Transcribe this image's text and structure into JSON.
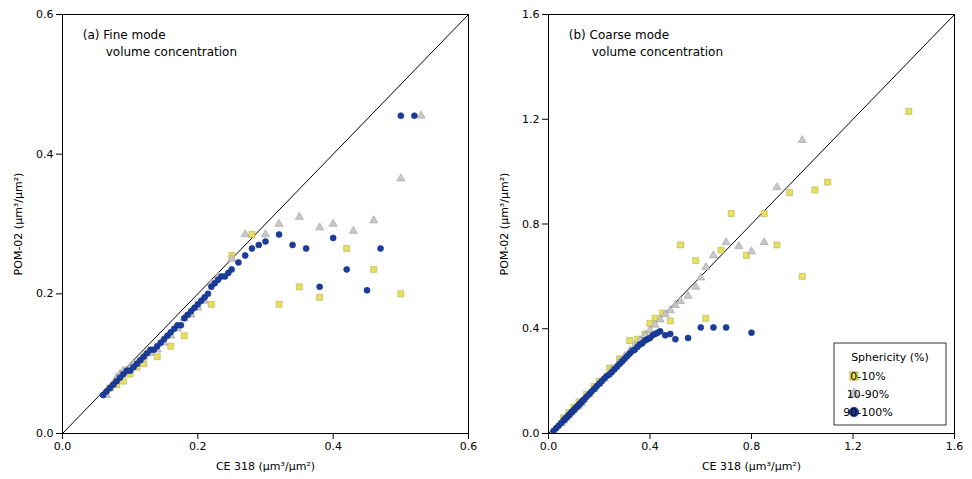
{
  "chart_data": [
    {
      "type": "scatter",
      "annotations": [
        "(a) Fine mode\n      volume concentration"
      ],
      "xlabel": "CE 318 (μm³/μm²)",
      "ylabel": "POM-02 (μm³/μm²)",
      "xlim": [
        0,
        0.6
      ],
      "ylim": [
        0,
        0.6
      ],
      "xticks": [
        {
          "value": 0,
          "label": "0.0"
        },
        0.2,
        0.4,
        0.6
      ],
      "yticks": [
        {
          "value": 0,
          "label": "0.0"
        },
        0.2,
        0.4,
        0.6
      ],
      "grid": false,
      "series": [
        {
          "marker": "square",
          "color": "#e8e060",
          "x": [
            0.07,
            0.08,
            0.09,
            0.1,
            0.11,
            0.12,
            0.14,
            0.16,
            0.18,
            0.22,
            0.25,
            0.28,
            0.32,
            0.35,
            0.38,
            0.42,
            0.46,
            0.5
          ],
          "y": [
            0.065,
            0.07,
            0.075,
            0.085,
            0.095,
            0.1,
            0.11,
            0.125,
            0.14,
            0.185,
            0.255,
            0.285,
            0.185,
            0.21,
            0.195,
            0.265,
            0.235,
            0.2
          ]
        },
        {
          "marker": "triangle",
          "color": "#c8c8c8",
          "x": [
            0.065,
            0.07,
            0.075,
            0.08,
            0.085,
            0.09,
            0.095,
            0.1,
            0.105,
            0.11,
            0.115,
            0.12,
            0.13,
            0.14,
            0.15,
            0.16,
            0.17,
            0.18,
            0.19,
            0.2,
            0.21,
            0.22,
            0.23,
            0.25,
            0.27,
            0.3,
            0.32,
            0.35,
            0.38,
            0.4,
            0.43,
            0.46,
            0.5,
            0.53
          ],
          "y": [
            0.055,
            0.065,
            0.07,
            0.08,
            0.085,
            0.09,
            0.09,
            0.095,
            0.1,
            0.1,
            0.105,
            0.11,
            0.115,
            0.12,
            0.13,
            0.14,
            0.15,
            0.165,
            0.17,
            0.18,
            0.19,
            0.215,
            0.225,
            0.25,
            0.285,
            0.285,
            0.3,
            0.31,
            0.295,
            0.3,
            0.29,
            0.305,
            0.365,
            0.455
          ]
        },
        {
          "marker": "circle",
          "color": "#1a3d9e",
          "x": [
            0.06,
            0.065,
            0.07,
            0.075,
            0.08,
            0.085,
            0.09,
            0.095,
            0.1,
            0.105,
            0.11,
            0.115,
            0.12,
            0.125,
            0.13,
            0.135,
            0.14,
            0.145,
            0.15,
            0.155,
            0.16,
            0.165,
            0.17,
            0.175,
            0.18,
            0.185,
            0.19,
            0.195,
            0.2,
            0.205,
            0.21,
            0.215,
            0.22,
            0.225,
            0.23,
            0.235,
            0.24,
            0.245,
            0.25,
            0.26,
            0.27,
            0.28,
            0.29,
            0.3,
            0.32,
            0.34,
            0.36,
            0.38,
            0.4,
            0.42,
            0.45,
            0.47,
            0.5,
            0.52
          ],
          "y": [
            0.055,
            0.06,
            0.065,
            0.07,
            0.075,
            0.08,
            0.085,
            0.09,
            0.09,
            0.095,
            0.1,
            0.105,
            0.11,
            0.115,
            0.12,
            0.12,
            0.125,
            0.13,
            0.135,
            0.14,
            0.145,
            0.15,
            0.155,
            0.155,
            0.165,
            0.17,
            0.175,
            0.18,
            0.185,
            0.19,
            0.195,
            0.2,
            0.21,
            0.215,
            0.22,
            0.225,
            0.225,
            0.23,
            0.235,
            0.245,
            0.255,
            0.265,
            0.27,
            0.275,
            0.285,
            0.27,
            0.265,
            0.21,
            0.28,
            0.235,
            0.205,
            0.265,
            0.455,
            0.455
          ]
        }
      ]
    },
    {
      "type": "scatter",
      "annotations": [
        "(b) Coarse mode\n      volume concentration"
      ],
      "xlabel": "CE 318 (μm³/μm²)",
      "ylabel": "POM-02 (μm³/μm²)",
      "xlim": [
        0,
        1.6
      ],
      "ylim": [
        0,
        1.6
      ],
      "xticks": [
        {
          "value": 0,
          "label": "0.0"
        },
        0.4,
        0.8,
        1.2,
        1.6
      ],
      "yticks": [
        {
          "value": 0,
          "label": "0.0"
        },
        0.4,
        0.8,
        1.2,
        1.6
      ],
      "grid": false,
      "legend": "lower right",
      "legend_title": "Sphericity (%)",
      "series": [
        {
          "name": "0-10%",
          "marker": "square",
          "color": "#e8e060",
          "x": [
            0.06,
            0.08,
            0.1,
            0.12,
            0.15,
            0.18,
            0.2,
            0.24,
            0.28,
            0.32,
            0.35,
            0.38,
            0.4,
            0.42,
            0.45,
            0.48,
            0.52,
            0.58,
            0.62,
            0.68,
            0.72,
            0.78,
            0.85,
            0.9,
            0.95,
            1.0,
            1.05,
            1.1,
            1.42
          ],
          "y": [
            0.06,
            0.08,
            0.1,
            0.12,
            0.15,
            0.18,
            0.2,
            0.25,
            0.285,
            0.355,
            0.36,
            0.38,
            0.42,
            0.44,
            0.46,
            0.43,
            0.72,
            0.66,
            0.44,
            0.7,
            0.84,
            0.68,
            0.84,
            0.72,
            0.92,
            0.6,
            0.93,
            0.96,
            1.23
          ]
        },
        {
          "name": "10-90%",
          "marker": "triangle",
          "color": "#c8c8c8",
          "x": [
            0.05,
            0.06,
            0.07,
            0.08,
            0.09,
            0.1,
            0.11,
            0.12,
            0.13,
            0.14,
            0.16,
            0.18,
            0.2,
            0.22,
            0.25,
            0.28,
            0.3,
            0.32,
            0.34,
            0.36,
            0.38,
            0.4,
            0.42,
            0.44,
            0.46,
            0.48,
            0.5,
            0.52,
            0.55,
            0.58,
            0.6,
            0.62,
            0.65,
            0.7,
            0.75,
            0.8,
            0.85,
            0.9,
            1.0
          ],
          "y": [
            0.04,
            0.05,
            0.06,
            0.07,
            0.08,
            0.09,
            0.1,
            0.105,
            0.115,
            0.13,
            0.15,
            0.17,
            0.19,
            0.21,
            0.245,
            0.275,
            0.295,
            0.315,
            0.335,
            0.355,
            0.375,
            0.395,
            0.415,
            0.435,
            0.455,
            0.47,
            0.49,
            0.505,
            0.525,
            0.56,
            0.595,
            0.635,
            0.68,
            0.73,
            0.715,
            0.695,
            0.73,
            0.94,
            1.12
          ]
        },
        {
          "name": "90-100%",
          "marker": "circle",
          "color": "#1a3d9e",
          "x": [
            0.02,
            0.03,
            0.04,
            0.05,
            0.06,
            0.065,
            0.07,
            0.075,
            0.08,
            0.085,
            0.09,
            0.095,
            0.1,
            0.105,
            0.11,
            0.115,
            0.12,
            0.125,
            0.13,
            0.135,
            0.14,
            0.15,
            0.16,
            0.17,
            0.18,
            0.19,
            0.2,
            0.21,
            0.22,
            0.23,
            0.24,
            0.25,
            0.26,
            0.27,
            0.28,
            0.29,
            0.3,
            0.31,
            0.32,
            0.33,
            0.34,
            0.35,
            0.36,
            0.37,
            0.38,
            0.39,
            0.4,
            0.41,
            0.42,
            0.43,
            0.44,
            0.46,
            0.48,
            0.5,
            0.55,
            0.6,
            0.65,
            0.7,
            0.8
          ],
          "y": [
            0.01,
            0.02,
            0.03,
            0.04,
            0.05,
            0.055,
            0.06,
            0.065,
            0.07,
            0.075,
            0.08,
            0.085,
            0.09,
            0.095,
            0.1,
            0.105,
            0.11,
            0.115,
            0.12,
            0.125,
            0.13,
            0.14,
            0.15,
            0.16,
            0.17,
            0.18,
            0.19,
            0.2,
            0.21,
            0.22,
            0.225,
            0.235,
            0.245,
            0.255,
            0.265,
            0.275,
            0.285,
            0.295,
            0.305,
            0.315,
            0.32,
            0.33,
            0.34,
            0.345,
            0.355,
            0.36,
            0.365,
            0.375,
            0.38,
            0.385,
            0.39,
            0.375,
            0.38,
            0.36,
            0.365,
            0.405,
            0.405,
            0.405,
            0.385
          ]
        }
      ]
    }
  ]
}
